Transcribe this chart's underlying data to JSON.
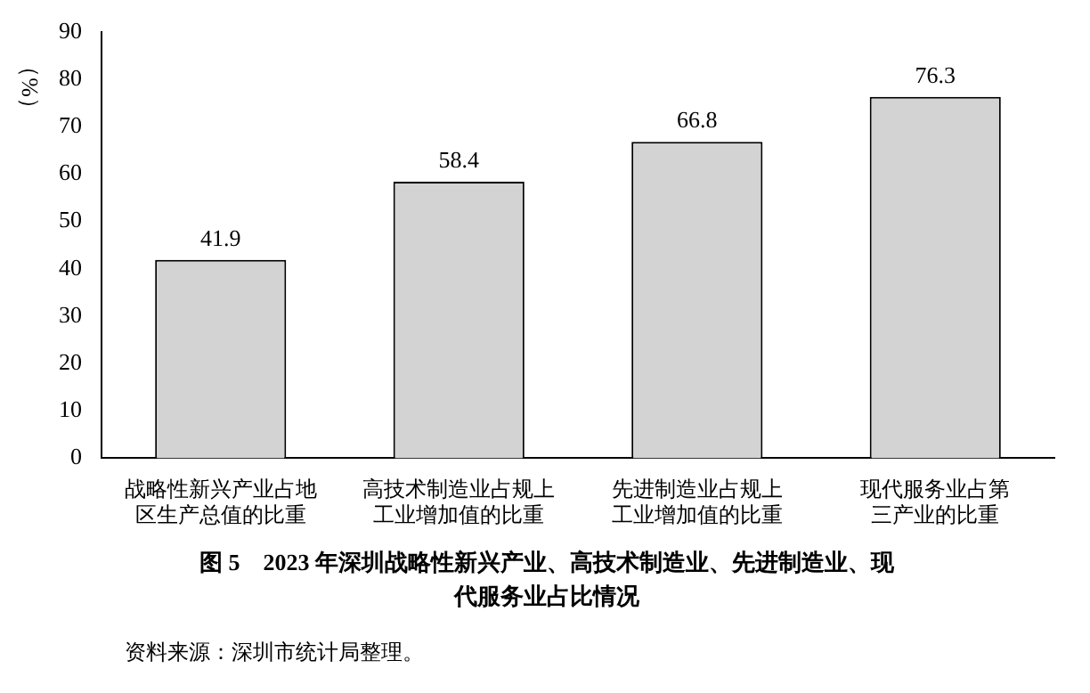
{
  "chart_data": {
    "type": "bar",
    "title": "图 5　2023 年深圳战略性新兴产业、高技术制造业、先进制造业、现代服务业占比情况",
    "ylabel": "（%）",
    "categories": [
      "战略性新兴产业占地区生产总值的比重",
      "高技术制造业占规上工业增加值的比重",
      "先进制造业占规上工业增加值的比重",
      "现代服务业占第三产业的比重"
    ],
    "values": [
      41.9,
      58.4,
      66.8,
      76.3
    ],
    "color": "#d3d3d3",
    "ylim": [
      0,
      90
    ],
    "yticks": [
      0,
      10,
      20,
      30,
      40,
      50,
      60,
      70,
      80,
      90
    ],
    "grid": false,
    "data_labels": true,
    "annotations": [
      "资料来源：深圳市统计局整理。"
    ]
  }
}
